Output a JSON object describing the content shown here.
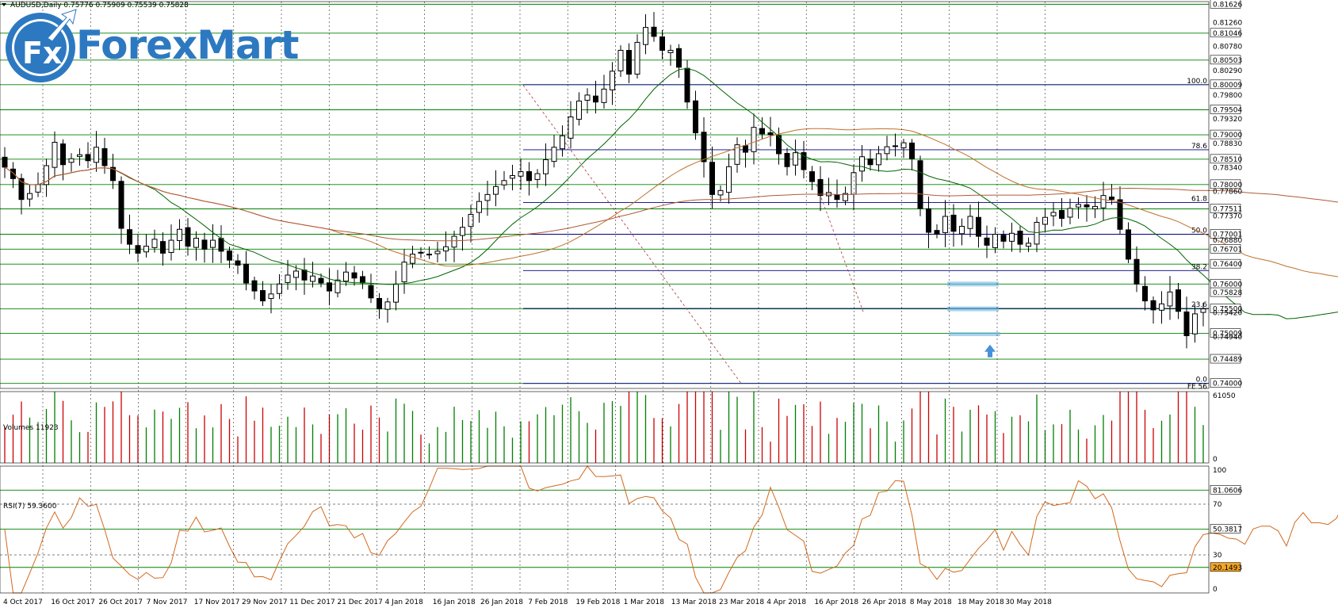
{
  "header": {
    "symbol_line": "AUDUSD,Daily  0.75776 0.75909 0.75539 0.75828",
    "logo_text": "ForexMart",
    "logo_badge": "Fx"
  },
  "chart_data": [
    {
      "type": "candlestick",
      "title": "AUDUSD,Daily",
      "ohlc_latest": {
        "open": 0.75776,
        "high": 0.75909,
        "low": 0.75539,
        "close": 0.75828
      },
      "ylim": [
        0.739,
        0.8168
      ],
      "price_ticks": [
        0.81626,
        0.8126,
        0.81046,
        0.8078,
        0.80503,
        0.8029,
        0.80009,
        0.798,
        0.79504,
        0.7932,
        0.79,
        0.7883,
        0.7851,
        0.7834,
        0.78,
        0.7786,
        0.77511,
        0.7737,
        0.77001,
        0.7688,
        0.76701,
        0.764,
        0.76,
        0.75828,
        0.755,
        0.7542,
        0.75009,
        0.7494,
        0.74489,
        0.74
      ],
      "horizontal_levels": [
        0.81626,
        0.81046,
        0.80503,
        0.80009,
        0.79504,
        0.79,
        0.7851,
        0.78,
        0.77511,
        0.77001,
        0.76701,
        0.764,
        0.76,
        0.755,
        0.75009,
        0.74489,
        0.74
      ],
      "price_box": [
        0.75828
      ],
      "fibonacci": {
        "levels": [
          "100.0",
          "78.6",
          "61.8",
          "50.0",
          "38.2",
          "23.6",
          "0.0"
        ],
        "prices": [
          0.80009,
          0.787,
          0.7764,
          0.77001,
          0.7627,
          0.7551,
          0.74
        ],
        "tag": "FE 56"
      },
      "x_tick_labels": [
        "4 Oct 2017",
        "16 Oct 2017",
        "26 Oct 2017",
        "7 Nov 2017",
        "17 Nov 2017",
        "29 Nov 2017",
        "11 Dec 2017",
        "21 Dec 2017",
        "4 Jan 2018",
        "16 Jan 2018",
        "26 Jan 2018",
        "7 Feb 2018",
        "19 Feb 2018",
        "1 Mar 2018",
        "13 Mar 2018",
        "23 Mar 2018",
        "4 Apr 2018",
        "16 Apr 2018",
        "26 Apr 2018",
        "8 May 2018",
        "18 May 2018",
        "30 May 2018"
      ],
      "closes": [
        0.7835,
        0.7812,
        0.777,
        0.7782,
        0.78,
        0.7838,
        0.7885,
        0.784,
        0.7852,
        0.786,
        0.7848,
        0.7875,
        0.7838,
        0.7808,
        0.7712,
        0.768,
        0.7662,
        0.7676,
        0.769,
        0.7662,
        0.7688,
        0.771,
        0.7676,
        0.7692,
        0.767,
        0.7688,
        0.7666,
        0.7648,
        0.7638,
        0.7602,
        0.7586,
        0.7566,
        0.758,
        0.76,
        0.7618,
        0.7626,
        0.7608,
        0.7616,
        0.7602,
        0.7586,
        0.7608,
        0.7624,
        0.7612,
        0.7602,
        0.7572,
        0.755,
        0.7564,
        0.76,
        0.7644,
        0.766,
        0.7662,
        0.766,
        0.7666,
        0.7675,
        0.7696,
        0.7714,
        0.774,
        0.7766,
        0.778,
        0.7796,
        0.7808,
        0.7818,
        0.7826,
        0.7808,
        0.7822,
        0.785,
        0.7875,
        0.7898,
        0.7936,
        0.7968,
        0.798,
        0.7966,
        0.7992,
        0.8028,
        0.807,
        0.8022,
        0.8086,
        0.8116,
        0.8098,
        0.807,
        0.807,
        0.8036,
        0.7966,
        0.7904,
        0.7846,
        0.778,
        0.7788,
        0.7836,
        0.788,
        0.7865,
        0.7915,
        0.7902,
        0.79,
        0.7862,
        0.7836,
        0.7864,
        0.783,
        0.7806,
        0.7778,
        0.7784,
        0.777,
        0.7782,
        0.7824,
        0.7856,
        0.784,
        0.7862,
        0.7876,
        0.7878,
        0.7884,
        0.7852,
        0.7752,
        0.7704,
        0.77,
        0.7736,
        0.7706,
        0.7716,
        0.7736,
        0.7696,
        0.7678,
        0.77,
        0.7686,
        0.7702,
        0.768,
        0.7682,
        0.7724,
        0.7734,
        0.7744,
        0.7732,
        0.7752,
        0.776,
        0.7755,
        0.7756,
        0.7778,
        0.777,
        0.771,
        0.765,
        0.76,
        0.7566,
        0.7548,
        0.756,
        0.7584,
        0.7545,
        0.7496,
        0.754,
        0.755,
        0.7538,
        0.7546,
        0.756,
        0.7518,
        0.745,
        0.7542,
        0.7564,
        0.7552,
        0.754,
        0.748,
        0.7556,
        0.753,
        0.7568,
        0.759,
        0.7572,
        0.7584,
        0.757,
        0.7584,
        0.7576,
        0.755,
        0.7515,
        0.7578,
        0.7583
      ]
    },
    {
      "type": "bar",
      "title": "Volumes 11923",
      "ylim": [
        0,
        61050
      ],
      "ticks": [
        "61050",
        "0"
      ]
    },
    {
      "type": "line",
      "title": "RSI(7) 59.3600",
      "ylim": [
        0,
        100
      ],
      "ticks": [
        "100",
        "70",
        "30",
        "0"
      ],
      "level_boxes": [
        "81.0606",
        "50.3817",
        "20.1493"
      ],
      "level_values": [
        81.0606,
        50.3817,
        20.1493
      ]
    }
  ],
  "colors": {
    "bull": "#ffffff",
    "bear": "#000000",
    "grid_level": "#008000",
    "fib": "#000080",
    "ma_fast": "#006400",
    "ma_slow": "#a0522d",
    "rsi": "#d2691e",
    "rect": "#6fb8e8",
    "arrow": "#4a90d9",
    "volume_up": "#008000",
    "volume_down": "#cc0000",
    "brand": "#2d79c1"
  }
}
